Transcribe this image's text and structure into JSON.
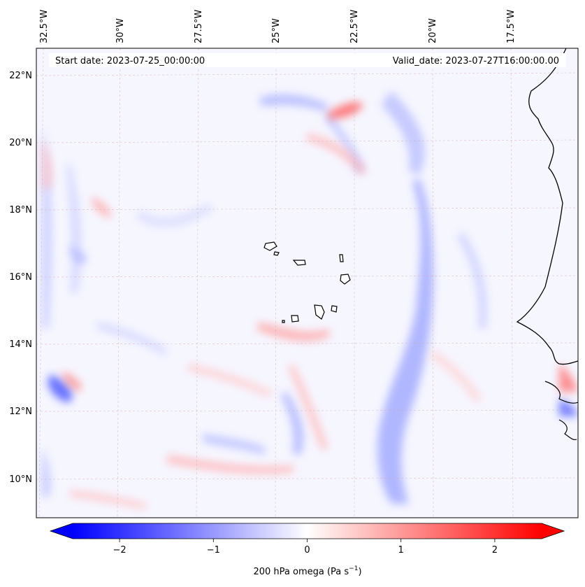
{
  "header": {
    "start_date": "Start date: 2023-07-25_00:00:00",
    "valid_date": "Valid_date: 2023-07-27T16:00:00.00"
  },
  "map": {
    "projection_note": "regional lat/lon map",
    "lon_labels": [
      "32.5°W",
      "30°W",
      "27.5°W",
      "25°W",
      "22.5°W",
      "20°W",
      "17.5°W"
    ],
    "lat_labels": [
      "22°N",
      "20°N",
      "18°N",
      "16°N",
      "14°N",
      "12°N",
      "10°N"
    ],
    "colors": {
      "negative": "#0000ff",
      "neutral": "#ffffff",
      "positive": "#ff0000",
      "grid": "#c9a9a9",
      "coast": "#000000"
    }
  },
  "colorbar": {
    "label_main": "200 hPa omega (Pa s",
    "label_sup": "−1",
    "label_end": ")",
    "ticks": [
      "−2",
      "−1",
      "0",
      "1",
      "2"
    ],
    "tick_values": [
      -2,
      -1,
      0,
      1,
      2
    ],
    "range": [
      -2.5,
      2.5
    ]
  }
}
